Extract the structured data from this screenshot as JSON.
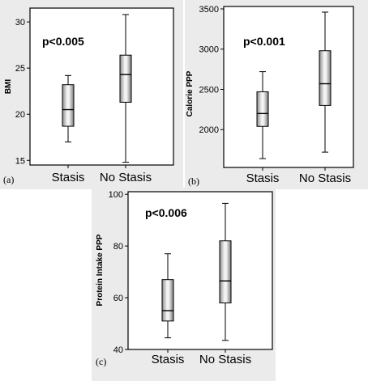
{
  "chart_data": [
    {
      "id": "a",
      "type": "box",
      "panel_label": "(a)",
      "annotation": "p<0.005",
      "ylabel": "BMI",
      "ylim": [
        14.5,
        31.5
      ],
      "yticks": [
        15,
        20,
        25,
        30
      ],
      "categories": [
        "Stasis",
        "No Stasis"
      ],
      "boxes": [
        {
          "min": 17.0,
          "q1": 18.7,
          "median": 20.5,
          "q3": 23.2,
          "max": 24.2
        },
        {
          "min": 14.8,
          "q1": 21.3,
          "median": 24.3,
          "q3": 26.4,
          "max": 30.8
        }
      ]
    },
    {
      "id": "b",
      "type": "box",
      "panel_label": "(b)",
      "annotation": "p<0.001",
      "ylabel": "Calorie PPP",
      "ylim": [
        1530,
        3530
      ],
      "yticks": [
        2000,
        2500,
        3000,
        3500
      ],
      "categories": [
        "Stasis",
        "No Stasis"
      ],
      "boxes": [
        {
          "min": 1640,
          "q1": 2040,
          "median": 2200,
          "q3": 2470,
          "max": 2720
        },
        {
          "min": 1720,
          "q1": 2300,
          "median": 2570,
          "q3": 2980,
          "max": 3460
        }
      ]
    },
    {
      "id": "c",
      "type": "box",
      "panel_label": "(c)",
      "annotation": "p<0.006",
      "ylabel": "Protein Intake PPP",
      "ylim": [
        40,
        101
      ],
      "yticks": [
        40,
        60,
        80,
        100
      ],
      "categories": [
        "Stasis",
        "No Stasis"
      ],
      "boxes": [
        {
          "min": 44.5,
          "q1": 51.0,
          "median": 55.0,
          "q3": 67.0,
          "max": 77.0
        },
        {
          "min": 43.5,
          "q1": 58.0,
          "median": 66.5,
          "q3": 82.0,
          "max": 96.5
        }
      ]
    }
  ]
}
